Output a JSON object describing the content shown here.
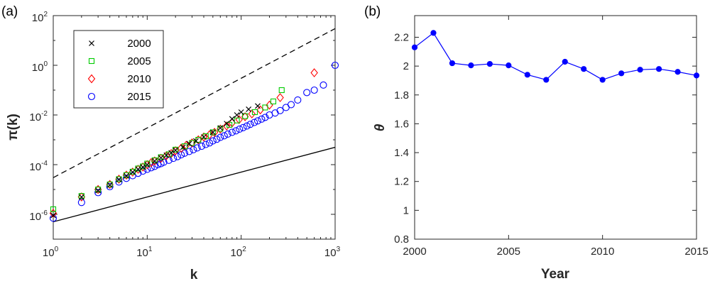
{
  "chart_data": [
    {
      "type": "scatter",
      "panel_label": "(a)",
      "xscale": "log",
      "yscale": "log",
      "xlim": [
        1,
        1000
      ],
      "ylim": [
        1e-07,
        100
      ],
      "xlabel": "k",
      "ylabel": "π(k)",
      "xtick_base": "10",
      "xtick_exps": [
        "0",
        "1",
        "2",
        "3"
      ],
      "ytick_base": "10",
      "ytick_exps": [
        "-6",
        "-4",
        "-2",
        "0",
        "2"
      ],
      "legend": {
        "location": "top-left"
      },
      "series": [
        {
          "name": "2000",
          "color": "#000000",
          "marker": "x",
          "points": [
            [
              1,
              9e-07
            ],
            [
              2,
              5e-06
            ],
            [
              3,
              9e-06
            ],
            [
              4,
              1.5e-05
            ],
            [
              5,
              2.5e-05
            ],
            [
              6,
              3.5e-05
            ],
            [
              7,
              5e-05
            ],
            [
              8,
              6.5e-05
            ],
            [
              9,
              8e-05
            ],
            [
              10,
              0.0001
            ],
            [
              12,
              0.00014
            ],
            [
              14,
              0.00019
            ],
            [
              16,
              0.00024
            ],
            [
              18,
              0.0003
            ],
            [
              20,
              0.00038
            ],
            [
              24,
              0.0005
            ],
            [
              28,
              0.0007
            ],
            [
              33,
              0.0009
            ],
            [
              40,
              0.0013
            ],
            [
              50,
              0.002
            ],
            [
              60,
              0.003
            ],
            [
              70,
              0.0045
            ],
            [
              80,
              0.007
            ],
            [
              90,
              0.01
            ],
            [
              100,
              0.013
            ],
            [
              120,
              0.017
            ],
            [
              150,
              0.023
            ]
          ]
        },
        {
          "name": "2005",
          "color": "#00cc00",
          "marker": "square",
          "points": [
            [
              1,
              1.6e-06
            ],
            [
              2,
              5.5e-06
            ],
            [
              3,
              1e-05
            ],
            [
              4,
              1.6e-05
            ],
            [
              5,
              2.6e-05
            ],
            [
              6,
              3.8e-05
            ],
            [
              7,
              5.2e-05
            ],
            [
              8,
              7e-05
            ],
            [
              9,
              8.5e-05
            ],
            [
              10,
              0.00011
            ],
            [
              12,
              0.00015
            ],
            [
              14,
              0.0002
            ],
            [
              17,
              0.00026
            ],
            [
              20,
              0.0004
            ],
            [
              25,
              0.00055
            ],
            [
              30,
              0.00075
            ],
            [
              35,
              0.001
            ],
            [
              42,
              0.0014
            ],
            [
              50,
              0.002
            ],
            [
              60,
              0.0028
            ],
            [
              75,
              0.004
            ],
            [
              90,
              0.006
            ],
            [
              110,
              0.009
            ],
            [
              140,
              0.013
            ],
            [
              180,
              0.02
            ],
            [
              220,
              0.035
            ],
            [
              270,
              0.1
            ]
          ]
        },
        {
          "name": "2010",
          "color": "#ff0000",
          "marker": "diamond",
          "points": [
            [
              1,
              1.1e-06
            ],
            [
              2,
              5e-06
            ],
            [
              3,
              1e-05
            ],
            [
              4,
              1.6e-05
            ],
            [
              5,
              2.6e-05
            ],
            [
              6,
              3.8e-05
            ],
            [
              7,
              5e-05
            ],
            [
              8,
              6.5e-05
            ],
            [
              9,
              8e-05
            ],
            [
              10,
              0.0001
            ],
            [
              11,
              0.00012
            ],
            [
              12,
              0.00014
            ],
            [
              14,
              0.00018
            ],
            [
              16,
              0.00023
            ],
            [
              18,
              0.00028
            ],
            [
              20,
              0.00036
            ],
            [
              23,
              0.00046
            ],
            [
              26,
              0.0006
            ],
            [
              30,
              0.00075
            ],
            [
              35,
              0.001
            ],
            [
              40,
              0.0013
            ],
            [
              46,
              0.0016
            ],
            [
              52,
              0.002
            ],
            [
              60,
              0.0027
            ],
            [
              70,
              0.0036
            ],
            [
              80,
              0.0048
            ],
            [
              95,
              0.0065
            ],
            [
              110,
              0.0085
            ],
            [
              130,
              0.011
            ],
            [
              160,
              0.016
            ],
            [
              200,
              0.025
            ],
            [
              260,
              0.05
            ],
            [
              600,
              0.5
            ]
          ]
        },
        {
          "name": "2015",
          "color": "#0000ff",
          "marker": "circle",
          "points": [
            [
              1,
              7e-07
            ],
            [
              2,
              3e-06
            ],
            [
              3,
              7.5e-06
            ],
            [
              4,
              1.3e-05
            ],
            [
              5,
              2e-05
            ],
            [
              6,
              2.8e-05
            ],
            [
              7,
              3.6e-05
            ],
            [
              8,
              4.5e-05
            ],
            [
              9,
              5.5e-05
            ],
            [
              10,
              6.5e-05
            ],
            [
              11,
              7.5e-05
            ],
            [
              12,
              8.5e-05
            ],
            [
              13,
              0.0001
            ],
            [
              14,
              0.00011
            ],
            [
              15,
              0.000125
            ],
            [
              17,
              0.00015
            ],
            [
              19,
              0.00018
            ],
            [
              21,
              0.00021
            ],
            [
              23,
              0.00025
            ],
            [
              25,
              0.00029
            ],
            [
              28,
              0.00034
            ],
            [
              31,
              0.0004
            ],
            [
              34,
              0.00047
            ],
            [
              38,
              0.00055
            ],
            [
              42,
              0.00065
            ],
            [
              46,
              0.00075
            ],
            [
              50,
              0.0009
            ],
            [
              55,
              0.00105
            ],
            [
              60,
              0.00125
            ],
            [
              66,
              0.00145
            ],
            [
              72,
              0.0017
            ],
            [
              80,
              0.002
            ],
            [
              88,
              0.0023
            ],
            [
              96,
              0.0027
            ],
            [
              105,
              0.0031
            ],
            [
              115,
              0.0036
            ],
            [
              125,
              0.0042
            ],
            [
              138,
              0.005
            ],
            [
              150,
              0.0058
            ],
            [
              165,
              0.0068
            ],
            [
              180,
              0.008
            ],
            [
              200,
              0.01
            ],
            [
              230,
              0.012
            ],
            [
              260,
              0.015
            ],
            [
              300,
              0.02
            ],
            [
              340,
              0.026
            ],
            [
              400,
              0.04
            ],
            [
              500,
              0.08
            ],
            [
              600,
              0.1
            ],
            [
              750,
              0.16
            ],
            [
              1000,
              1.0
            ]
          ]
        }
      ],
      "reference_lines": [
        {
          "style": "dashed",
          "color": "#000000",
          "x": [
            1,
            1000
          ],
          "y": [
            3e-05,
            30
          ]
        },
        {
          "style": "solid",
          "color": "#000000",
          "x": [
            1,
            1000
          ],
          "y": [
            5e-07,
            0.0005
          ]
        }
      ]
    },
    {
      "type": "line",
      "panel_label": "(b)",
      "xlabel": "Year",
      "ylabel": "θ",
      "xlim": [
        2000,
        2015
      ],
      "ylim": [
        0.8,
        2.35
      ],
      "xticks": [
        "2000",
        "2005",
        "2010",
        "2015"
      ],
      "yticks": [
        "0.8",
        "1",
        "1.2",
        "1.4",
        "1.6",
        "1.8",
        "2",
        "2.2"
      ],
      "series": [
        {
          "color": "#0000ff",
          "marker": "filled-circle",
          "x": [
            2000,
            2001,
            2002,
            2003,
            2004,
            2005,
            2006,
            2007,
            2008,
            2009,
            2010,
            2011,
            2012,
            2013,
            2014,
            2015
          ],
          "y": [
            2.13,
            2.23,
            2.02,
            2.005,
            2.015,
            2.005,
            1.94,
            1.905,
            2.03,
            1.98,
            1.905,
            1.95,
            1.975,
            1.98,
            1.96,
            1.935
          ]
        }
      ]
    }
  ]
}
